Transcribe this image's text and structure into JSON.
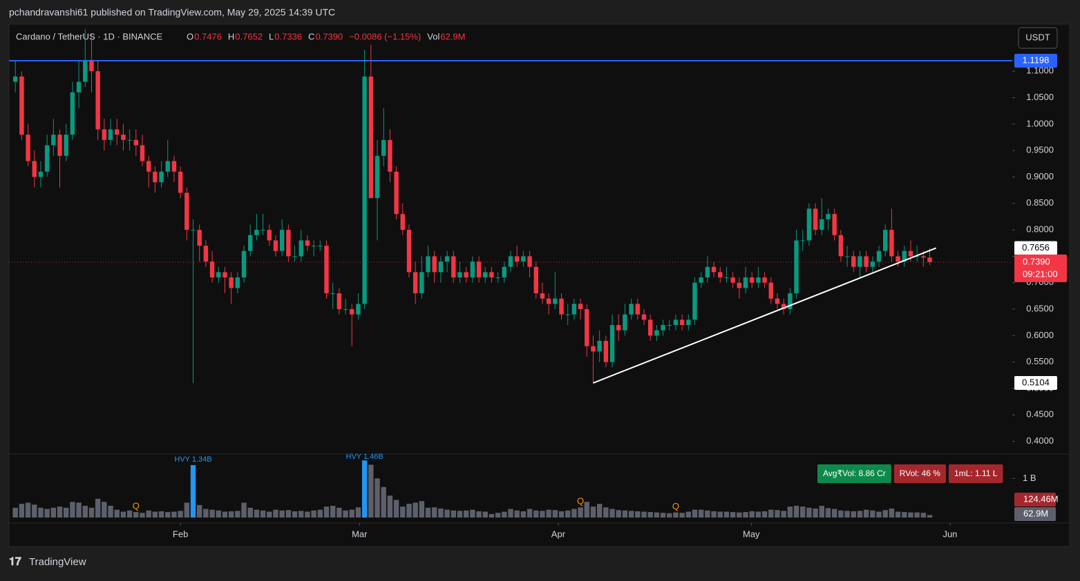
{
  "header": {
    "publisher": "pchandravanshi61 published on TradingView.com, May 29, 2025 14:39 UTC",
    "brand": "TradingView",
    "currency_button": "USDT"
  },
  "chart_data": {
    "type": "candlestick",
    "title": "Cardano / TetherUS · 1D · BINANCE",
    "legend": [
      {
        "key": "O",
        "value": "0.7476"
      },
      {
        "key": "H",
        "value": "0.7652"
      },
      {
        "key": "L",
        "value": "0.7336"
      },
      {
        "key": "C",
        "value": "0.7390"
      },
      {
        "key": "",
        "value": "−0.0086 (−1.15%)"
      },
      {
        "key": "Vol",
        "value": "62.9M"
      }
    ],
    "up_color": "#089981",
    "down_color": "#f23645",
    "candles": [
      [
        1.08,
        1.12,
        1.06,
        1.09
      ],
      [
        1.09,
        1.1,
        0.97,
        0.98
      ],
      [
        0.98,
        1.0,
        0.92,
        0.93
      ],
      [
        0.93,
        0.95,
        0.88,
        0.9
      ],
      [
        0.9,
        0.93,
        0.88,
        0.91
      ],
      [
        0.91,
        0.98,
        0.9,
        0.96
      ],
      [
        0.96,
        1.01,
        0.94,
        0.98
      ],
      [
        0.98,
        0.99,
        0.88,
        0.94
      ],
      [
        0.94,
        1.0,
        0.93,
        0.98
      ],
      [
        0.98,
        1.08,
        0.97,
        1.06
      ],
      [
        1.06,
        1.12,
        1.03,
        1.08
      ],
      [
        1.08,
        1.18,
        1.07,
        1.12
      ],
      [
        1.12,
        1.17,
        1.06,
        1.1
      ],
      [
        1.1,
        1.12,
        0.97,
        0.99
      ],
      [
        0.99,
        1.01,
        0.95,
        0.97
      ],
      [
        0.97,
        1.01,
        0.96,
        0.99
      ],
      [
        0.99,
        1.01,
        0.96,
        0.98
      ],
      [
        0.98,
        1.0,
        0.95,
        0.97
      ],
      [
        0.97,
        0.99,
        0.95,
        0.97
      ],
      [
        0.97,
        0.99,
        0.94,
        0.96
      ],
      [
        0.96,
        0.98,
        0.92,
        0.93
      ],
      [
        0.93,
        0.94,
        0.88,
        0.91
      ],
      [
        0.91,
        0.92,
        0.87,
        0.89
      ],
      [
        0.89,
        0.93,
        0.88,
        0.91
      ],
      [
        0.91,
        0.97,
        0.9,
        0.93
      ],
      [
        0.93,
        0.94,
        0.89,
        0.91
      ],
      [
        0.91,
        0.92,
        0.86,
        0.87
      ],
      [
        0.87,
        0.88,
        0.78,
        0.8
      ],
      [
        0.8,
        0.82,
        0.51,
        0.8
      ],
      [
        0.8,
        0.81,
        0.74,
        0.77
      ],
      [
        0.77,
        0.78,
        0.73,
        0.74
      ],
      [
        0.74,
        0.76,
        0.7,
        0.71
      ],
      [
        0.71,
        0.73,
        0.7,
        0.72
      ],
      [
        0.72,
        0.73,
        0.68,
        0.71
      ],
      [
        0.71,
        0.72,
        0.66,
        0.69
      ],
      [
        0.69,
        0.72,
        0.68,
        0.71
      ],
      [
        0.71,
        0.77,
        0.7,
        0.76
      ],
      [
        0.76,
        0.81,
        0.75,
        0.79
      ],
      [
        0.79,
        0.83,
        0.78,
        0.8
      ],
      [
        0.8,
        0.83,
        0.79,
        0.8
      ],
      [
        0.8,
        0.81,
        0.77,
        0.78
      ],
      [
        0.78,
        0.79,
        0.75,
        0.76
      ],
      [
        0.76,
        0.82,
        0.75,
        0.8
      ],
      [
        0.8,
        0.81,
        0.74,
        0.75
      ],
      [
        0.75,
        0.77,
        0.74,
        0.75
      ],
      [
        0.75,
        0.8,
        0.74,
        0.78
      ],
      [
        0.78,
        0.79,
        0.76,
        0.77
      ],
      [
        0.77,
        0.78,
        0.75,
        0.77
      ],
      [
        0.77,
        0.78,
        0.76,
        0.77
      ],
      [
        0.77,
        0.78,
        0.67,
        0.68
      ],
      [
        0.68,
        0.7,
        0.65,
        0.68
      ],
      [
        0.68,
        0.69,
        0.64,
        0.65
      ],
      [
        0.65,
        0.67,
        0.64,
        0.65
      ],
      [
        0.65,
        0.66,
        0.58,
        0.64
      ],
      [
        0.64,
        0.68,
        0.63,
        0.66
      ],
      [
        0.66,
        1.14,
        0.65,
        1.09
      ],
      [
        1.09,
        1.15,
        0.86,
        0.86
      ],
      [
        0.86,
        0.97,
        0.78,
        0.94
      ],
      [
        0.94,
        1.03,
        0.92,
        0.97
      ],
      [
        0.97,
        0.99,
        0.89,
        0.91
      ],
      [
        0.91,
        0.92,
        0.82,
        0.83
      ],
      [
        0.83,
        0.85,
        0.79,
        0.8
      ],
      [
        0.8,
        0.81,
        0.71,
        0.72
      ],
      [
        0.72,
        0.74,
        0.66,
        0.68
      ],
      [
        0.68,
        0.75,
        0.67,
        0.72
      ],
      [
        0.72,
        0.77,
        0.71,
        0.75
      ],
      [
        0.75,
        0.76,
        0.7,
        0.72
      ],
      [
        0.72,
        0.75,
        0.7,
        0.74
      ],
      [
        0.74,
        0.76,
        0.72,
        0.75
      ],
      [
        0.75,
        0.76,
        0.7,
        0.71
      ],
      [
        0.71,
        0.74,
        0.7,
        0.72
      ],
      [
        0.72,
        0.73,
        0.7,
        0.71
      ],
      [
        0.71,
        0.75,
        0.7,
        0.74
      ],
      [
        0.74,
        0.75,
        0.7,
        0.71
      ],
      [
        0.71,
        0.73,
        0.7,
        0.72
      ],
      [
        0.72,
        0.73,
        0.7,
        0.71
      ],
      [
        0.71,
        0.72,
        0.7,
        0.71
      ],
      [
        0.71,
        0.74,
        0.7,
        0.73
      ],
      [
        0.73,
        0.76,
        0.72,
        0.75
      ],
      [
        0.75,
        0.77,
        0.73,
        0.74
      ],
      [
        0.74,
        0.76,
        0.73,
        0.75
      ],
      [
        0.75,
        0.76,
        0.71,
        0.73
      ],
      [
        0.73,
        0.74,
        0.67,
        0.68
      ],
      [
        0.68,
        0.7,
        0.66,
        0.67
      ],
      [
        0.67,
        0.68,
        0.64,
        0.66
      ],
      [
        0.66,
        0.72,
        0.65,
        0.67
      ],
      [
        0.67,
        0.68,
        0.63,
        0.64
      ],
      [
        0.64,
        0.66,
        0.62,
        0.64
      ],
      [
        0.64,
        0.67,
        0.63,
        0.66
      ],
      [
        0.66,
        0.67,
        0.63,
        0.65
      ],
      [
        0.65,
        0.66,
        0.56,
        0.58
      ],
      [
        0.58,
        0.6,
        0.51,
        0.57
      ],
      [
        0.57,
        0.61,
        0.55,
        0.59
      ],
      [
        0.59,
        0.6,
        0.54,
        0.55
      ],
      [
        0.55,
        0.64,
        0.54,
        0.62
      ],
      [
        0.62,
        0.64,
        0.59,
        0.61
      ],
      [
        0.61,
        0.66,
        0.6,
        0.64
      ],
      [
        0.64,
        0.67,
        0.63,
        0.66
      ],
      [
        0.66,
        0.67,
        0.63,
        0.64
      ],
      [
        0.64,
        0.65,
        0.62,
        0.63
      ],
      [
        0.63,
        0.64,
        0.59,
        0.6
      ],
      [
        0.6,
        0.62,
        0.59,
        0.61
      ],
      [
        0.61,
        0.63,
        0.6,
        0.62
      ],
      [
        0.62,
        0.63,
        0.61,
        0.62
      ],
      [
        0.62,
        0.64,
        0.61,
        0.63
      ],
      [
        0.63,
        0.64,
        0.61,
        0.62
      ],
      [
        0.62,
        0.64,
        0.61,
        0.63
      ],
      [
        0.63,
        0.71,
        0.62,
        0.7
      ],
      [
        0.7,
        0.72,
        0.69,
        0.71
      ],
      [
        0.71,
        0.75,
        0.7,
        0.73
      ],
      [
        0.73,
        0.74,
        0.71,
        0.72
      ],
      [
        0.72,
        0.73,
        0.7,
        0.71
      ],
      [
        0.71,
        0.73,
        0.7,
        0.71
      ],
      [
        0.71,
        0.72,
        0.69,
        0.7
      ],
      [
        0.7,
        0.71,
        0.67,
        0.69
      ],
      [
        0.69,
        0.73,
        0.68,
        0.71
      ],
      [
        0.71,
        0.72,
        0.69,
        0.7
      ],
      [
        0.7,
        0.73,
        0.69,
        0.71
      ],
      [
        0.71,
        0.72,
        0.69,
        0.7
      ],
      [
        0.7,
        0.71,
        0.66,
        0.67
      ],
      [
        0.67,
        0.68,
        0.65,
        0.66
      ],
      [
        0.66,
        0.67,
        0.64,
        0.65
      ],
      [
        0.65,
        0.69,
        0.64,
        0.68
      ],
      [
        0.68,
        0.8,
        0.67,
        0.78
      ],
      [
        0.78,
        0.8,
        0.76,
        0.78
      ],
      [
        0.78,
        0.85,
        0.77,
        0.84
      ],
      [
        0.84,
        0.85,
        0.79,
        0.8
      ],
      [
        0.8,
        0.86,
        0.79,
        0.82
      ],
      [
        0.82,
        0.84,
        0.8,
        0.83
      ],
      [
        0.83,
        0.84,
        0.78,
        0.79
      ],
      [
        0.79,
        0.8,
        0.74,
        0.75
      ],
      [
        0.75,
        0.77,
        0.73,
        0.75
      ],
      [
        0.75,
        0.76,
        0.72,
        0.73
      ],
      [
        0.73,
        0.76,
        0.71,
        0.75
      ],
      [
        0.75,
        0.76,
        0.72,
        0.73
      ],
      [
        0.73,
        0.75,
        0.72,
        0.74
      ],
      [
        0.74,
        0.77,
        0.73,
        0.76
      ],
      [
        0.76,
        0.81,
        0.75,
        0.8
      ],
      [
        0.8,
        0.84,
        0.74,
        0.75
      ],
      [
        0.75,
        0.76,
        0.73,
        0.74
      ],
      [
        0.74,
        0.77,
        0.73,
        0.76
      ],
      [
        0.76,
        0.78,
        0.74,
        0.75
      ],
      [
        0.75,
        0.77,
        0.74,
        0.75
      ],
      [
        0.75,
        0.76,
        0.73,
        0.7476
      ],
      [
        0.7476,
        0.7652,
        0.7336,
        0.739
      ]
    ],
    "volume": [
      250,
      350,
      380,
      330,
      250,
      220,
      250,
      280,
      250,
      400,
      380,
      300,
      250,
      480,
      400,
      300,
      200,
      150,
      180,
      140,
      120,
      180,
      150,
      160,
      140,
      150,
      170,
      380,
      1340,
      320,
      220,
      200,
      180,
      150,
      160,
      170,
      380,
      250,
      200,
      180,
      150,
      200,
      180,
      190,
      160,
      170,
      150,
      180,
      200,
      280,
      300,
      250,
      180,
      200,
      260,
      1460,
      1350,
      1000,
      780,
      560,
      450,
      280,
      350,
      380,
      420,
      250,
      260,
      230,
      200,
      180,
      170,
      180,
      200,
      160,
      150,
      90,
      120,
      150,
      220,
      180,
      160,
      220,
      180,
      170,
      200,
      190,
      160,
      180,
      220,
      260,
      400,
      280,
      350,
      260,
      220,
      190,
      180,
      170,
      160,
      150,
      140,
      130,
      120,
      110,
      130,
      120,
      150,
      200,
      200,
      180,
      160,
      150,
      150,
      140,
      130,
      140,
      160,
      150,
      160,
      200,
      190,
      170,
      280,
      300,
      280,
      250,
      230,
      300,
      240,
      220,
      180,
      170,
      160,
      170,
      200,
      180,
      150,
      190,
      230,
      150,
      140,
      130,
      130,
      120,
      62.9
    ],
    "volume_color": "#5d606b",
    "hvy_color": "#2196f3",
    "annotations": [
      {
        "text": "HVY 1.34B",
        "index": 28
      },
      {
        "text": "HVY 1.46B",
        "index": 55
      }
    ],
    "q_markers": {
      "label": "Q",
      "indices": [
        19,
        89,
        104
      ]
    },
    "xlim": [
      -1,
      157
    ],
    "xticks": [
      {
        "value": 26,
        "label": "Feb"
      },
      {
        "value": 54.2,
        "label": "Mar"
      },
      {
        "value": 85.5,
        "label": "Apr"
      },
      {
        "value": 115.9,
        "label": "May"
      },
      {
        "value": 147.2,
        "label": "Jun"
      }
    ],
    "ylim": [
      0.376,
      1.189
    ],
    "yticks": [
      {
        "value": 0.4,
        "label": "0.4000"
      },
      {
        "value": 0.45,
        "label": "0.4500"
      },
      {
        "value": 0.5,
        "label": "0.5000"
      },
      {
        "value": 0.55,
        "label": "0.5500"
      },
      {
        "value": 0.6,
        "label": "0.6000"
      },
      {
        "value": 0.65,
        "label": "0.6500"
      },
      {
        "value": 0.7,
        "label": "0.7000"
      },
      {
        "value": 0.75,
        "label": "0.7500"
      },
      {
        "value": 0.8,
        "label": "0.8000"
      },
      {
        "value": 0.85,
        "label": "0.8500"
      },
      {
        "value": 0.9,
        "label": "0.9000"
      },
      {
        "value": 0.95,
        "label": "0.9500"
      },
      {
        "value": 1.0,
        "label": "1.0000"
      },
      {
        "value": 1.05,
        "label": "1.0500"
      },
      {
        "value": 1.1,
        "label": "1.1000"
      }
    ],
    "vlim": [
      0,
      1500
    ],
    "vticks": [
      {
        "value": 1000,
        "label": "1 B"
      }
    ],
    "volume_labels": [
      {
        "value": 124.46,
        "label": "124.46M",
        "color": "#a5272e"
      },
      {
        "value": 62.9,
        "label": "62.9M",
        "color": "#5d606b"
      }
    ],
    "resistance": {
      "value": 1.1198,
      "color": "#2962ff"
    },
    "trendline": {
      "x": [
        91,
        145
      ],
      "y": [
        0.5104,
        0.7656
      ]
    },
    "last_price": {
      "value": 0.739,
      "label": "0.7390",
      "countdown": "09:21:00"
    },
    "badges": [
      {
        "text": "Avg₹Vol: 8.86 Cr",
        "color": "#0d8a4b"
      },
      {
        "text": "RVol: 46 %",
        "color": "#a5272e"
      },
      {
        "text": "1mL: 1.11 L",
        "color": "#a5272e"
      }
    ]
  }
}
